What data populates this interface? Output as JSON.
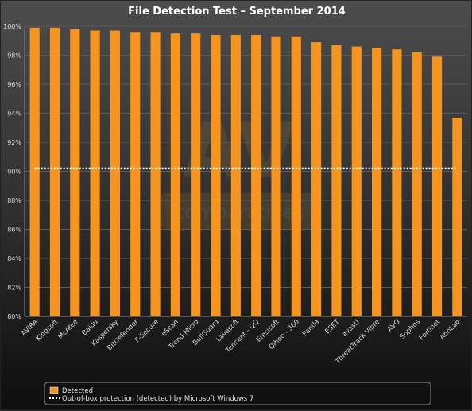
{
  "chart_data": {
    "type": "bar",
    "title": "File Detection Test – September 2014",
    "xlabel": "",
    "ylabel": "",
    "ylim": [
      80,
      100
    ],
    "yticks": [
      80,
      82,
      84,
      86,
      88,
      90,
      92,
      94,
      96,
      98,
      100
    ],
    "ytick_labels": [
      "80%",
      "82%",
      "84%",
      "86%",
      "88%",
      "90%",
      "92%",
      "94%",
      "96%",
      "98%",
      "100%"
    ],
    "grid": true,
    "legend_position": "bottom",
    "categories": [
      "AVIRA",
      "Kingsoft",
      "McAfee",
      "Baidu",
      "Kaspersky",
      "BitDefender",
      "F-Secure",
      "eScan",
      "Trend Micro",
      "BullGuard",
      "Lavasoft",
      "Tencent - QQ",
      "Emsisoft",
      "Qihoo - 360",
      "Panda",
      "ESET",
      "avast!",
      "ThreatTrack Vipre",
      "AVG",
      "Sophos",
      "Fortinet",
      "AhnLab"
    ],
    "series": [
      {
        "name": "Detected",
        "color": "#f7941d",
        "values": [
          99.9,
          99.9,
          99.8,
          99.7,
          99.7,
          99.6,
          99.6,
          99.5,
          99.5,
          99.4,
          99.4,
          99.4,
          99.3,
          99.3,
          98.9,
          98.7,
          98.6,
          98.5,
          98.4,
          98.2,
          97.9,
          93.7
        ]
      },
      {
        "name": "Out-of-box protection (detected) by Microsoft Windows 7",
        "color": "#ffffff",
        "line_style": "dotted",
        "values": [
          90.2,
          90.2,
          90.2,
          90.2,
          90.2,
          90.2,
          90.2,
          90.2,
          90.2,
          90.2,
          90.2,
          90.2,
          90.2,
          90.2,
          90.2,
          90.2,
          90.2,
          90.2,
          90.2,
          90.2,
          90.2,
          90.2
        ]
      }
    ]
  },
  "watermark": {
    "logo_text": "AV",
    "subtext": "comparatives"
  },
  "colors": {
    "grid": "#5a5a5a",
    "axis": "#888888"
  }
}
